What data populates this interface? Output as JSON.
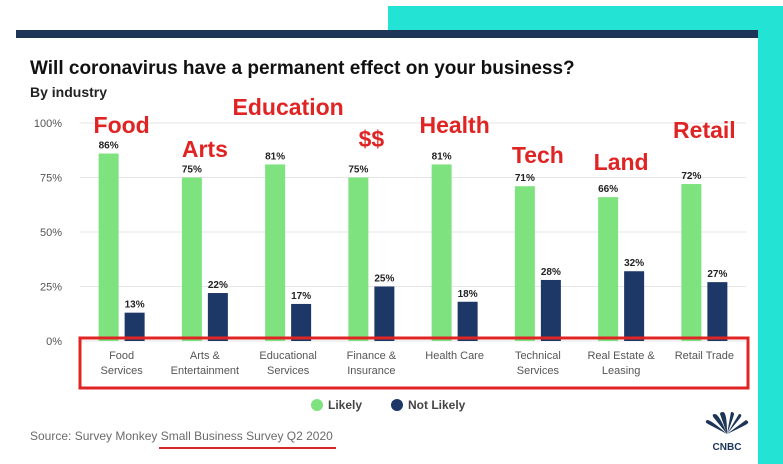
{
  "title": "Will coronavirus have a permanent effect on your business?",
  "subtitle": "By industry",
  "source": {
    "prefix": "Source: Survey Monkey ",
    "highlight": "Small Business Survey Q2 2020"
  },
  "brand": "CNBC",
  "colors": {
    "likely": "#7ee27f",
    "not_likely": "#1d3766",
    "annotation": "#e02424",
    "teal": "#22e3d4"
  },
  "chart_data": {
    "type": "bar",
    "categories": [
      "Food\nServices",
      "Arts &\nEntertainment",
      "Educational\nServices",
      "Finance &\nInsurance",
      "Health Care",
      "Technical\nServices",
      "Real Estate &\nLeasing",
      "Retail Trade"
    ],
    "series": [
      {
        "name": "Likely",
        "values": [
          86,
          75,
          81,
          75,
          81,
          71,
          66,
          72
        ]
      },
      {
        "name": "Not Likely",
        "values": [
          13,
          22,
          17,
          25,
          18,
          28,
          32,
          27
        ]
      }
    ],
    "ylim": [
      0,
      100
    ],
    "yticks": [
      "0%",
      "25%",
      "50%",
      "75%",
      "100%"
    ],
    "value_suffix": "%",
    "grid": true,
    "legend_position": "bottom"
  },
  "annotations": [
    {
      "text": "Food",
      "category": 0
    },
    {
      "text": "Arts",
      "category": 1
    },
    {
      "text": "Education",
      "category": 2
    },
    {
      "text": "$$",
      "category": 3
    },
    {
      "text": "Health",
      "category": 4
    },
    {
      "text": "Tech",
      "category": 5
    },
    {
      "text": "Land",
      "category": 6
    },
    {
      "text": "Retail",
      "category": 7
    }
  ]
}
